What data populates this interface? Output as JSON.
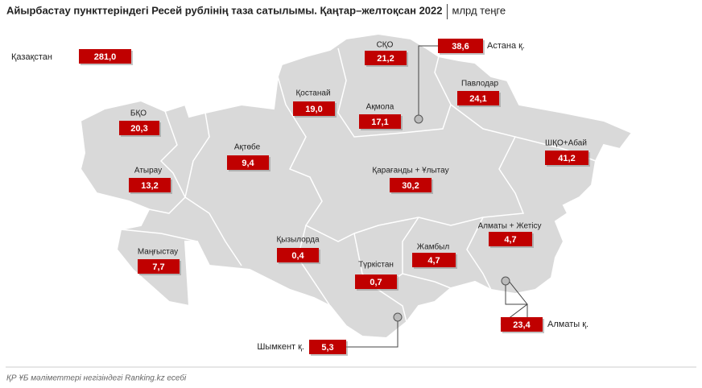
{
  "header": {
    "title": "Айырбастау пункттеріндегі Ресей рублінің таза сатылымы. Қаңтар–желтоқсан 2022",
    "unit": "млрд теңге"
  },
  "regions": [
    {
      "name": "Қазақстан",
      "value": "281,0"
    },
    {
      "name": "СҚО",
      "value": "21,2"
    },
    {
      "name": "Астана қ.",
      "value": "38,6"
    },
    {
      "name": "Павлодар",
      "value": "24,1"
    },
    {
      "name": "Қостанай",
      "value": "19,0"
    },
    {
      "name": "Ақмола",
      "value": "17,1"
    },
    {
      "name": "БҚО",
      "value": "20,3"
    },
    {
      "name": "Ақтөбе",
      "value": "9,4"
    },
    {
      "name": "ШҚО+Абай",
      "value": "41,2"
    },
    {
      "name": "Атырау",
      "value": "13,2"
    },
    {
      "name": "Қарағанды + Ұлытау",
      "value": "30,2"
    },
    {
      "name": "Алматы + Жетісу",
      "value": "4,7"
    },
    {
      "name": "Маңғыстау",
      "value": "7,7"
    },
    {
      "name": "Қызылорда",
      "value": "0,4"
    },
    {
      "name": "Жамбыл",
      "value": "4,7"
    },
    {
      "name": "Түркістан",
      "value": "0,7"
    },
    {
      "name": "Алматы қ.",
      "value": "23,4"
    },
    {
      "name": "Шымкент қ.",
      "value": "5,3"
    }
  ],
  "footer": "ҚР ҰБ мәліметтері негізіндегі Ranking.kz есебі"
}
